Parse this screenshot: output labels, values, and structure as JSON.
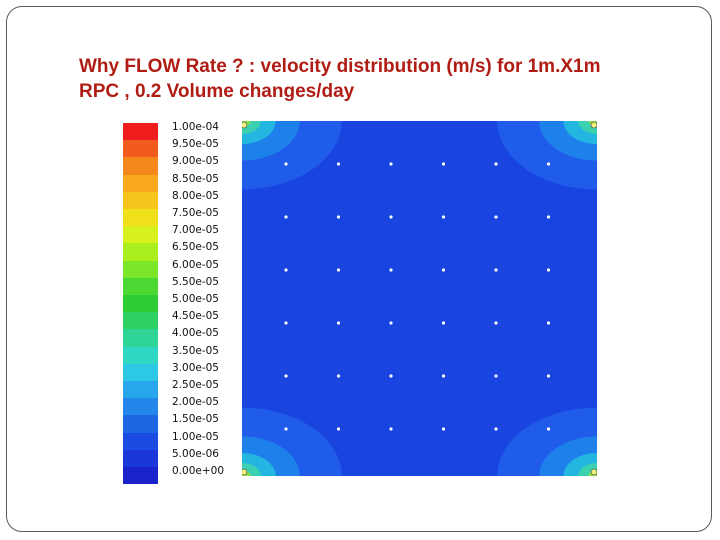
{
  "slide": {
    "title_line1": "Why FLOW Rate ? : velocity distribution (m/s) for 1m.X1m",
    "title_line2": "RPC ,  0.2 Volume changes/day",
    "title_color": "#b01d14"
  },
  "legend": {
    "labels": [
      "1.00e-04",
      "9.50e-05",
      "9.00e-05",
      "8.50e-05",
      "8.00e-05",
      "7.50e-05",
      "7.00e-05",
      "6.50e-05",
      "6.00e-05",
      "5.50e-05",
      "5.00e-05",
      "4.50e-05",
      "4.00e-05",
      "3.50e-05",
      "3.00e-05",
      "2.50e-05",
      "2.00e-05",
      "1.50e-05",
      "1.00e-05",
      "5.00e-06",
      "0.00e+00"
    ],
    "colors": [
      "#ee1c1c",
      "#f25a1e",
      "#f5881c",
      "#f7a81c",
      "#f5c51c",
      "#f0e01c",
      "#d8f01c",
      "#aaee1e",
      "#7ce628",
      "#4cd832",
      "#2ecc34",
      "#2ed064",
      "#2fd497",
      "#2fd8c4",
      "#2dc8e6",
      "#28a6ec",
      "#2286ea",
      "#1c68e4",
      "#1a4ce4",
      "#1a38da",
      "#1a22cc"
    ]
  },
  "plot": {
    "field_color": "#1a44e0",
    "corner_colors": [
      "#1f5cea",
      "#1e80ea",
      "#22b6e0",
      "#3ad0b0",
      "#8ae04a"
    ],
    "inlet_rows": 6,
    "inlet_cols": 6
  }
}
